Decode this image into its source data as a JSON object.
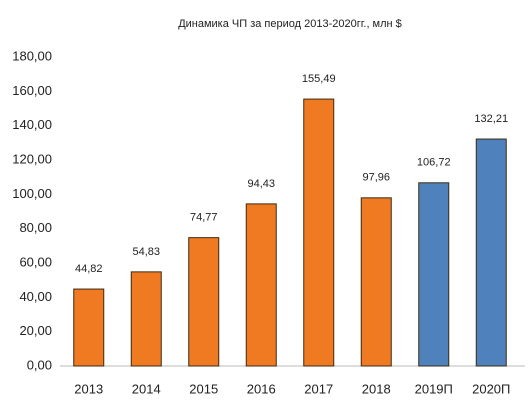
{
  "chart_data": {
    "type": "bar",
    "title": "Динамика ЧП за период 2013-2020гг., млн $",
    "categories": [
      "2013",
      "2014",
      "2015",
      "2016",
      "2017",
      "2018",
      "2019П",
      "2020П"
    ],
    "values": [
      44.82,
      54.83,
      74.77,
      94.43,
      155.49,
      97.96,
      106.72,
      132.21
    ],
    "value_labels": [
      "44,82",
      "54,83",
      "74,77",
      "94,43",
      "155,49",
      "97,96",
      "106,72",
      "132,21"
    ],
    "colors": [
      "#f07a22",
      "#f07a22",
      "#f07a22",
      "#f07a22",
      "#f07a22",
      "#f07a22",
      "#4f81bd",
      "#4f81bd"
    ],
    "ylim": [
      0,
      180
    ],
    "yticks": [
      {
        "value": 0,
        "label": "0,00"
      },
      {
        "value": 20,
        "label": "20,00"
      },
      {
        "value": 40,
        "label": "40,00"
      },
      {
        "value": 60,
        "label": "60,00"
      },
      {
        "value": 80,
        "label": "80,00"
      },
      {
        "value": 100,
        "label": "100,00"
      },
      {
        "value": 120,
        "label": "120,00"
      },
      {
        "value": 140,
        "label": "140,00"
      },
      {
        "value": 160,
        "label": "160,00"
      },
      {
        "value": 180,
        "label": "180,00"
      }
    ],
    "grid": false
  }
}
